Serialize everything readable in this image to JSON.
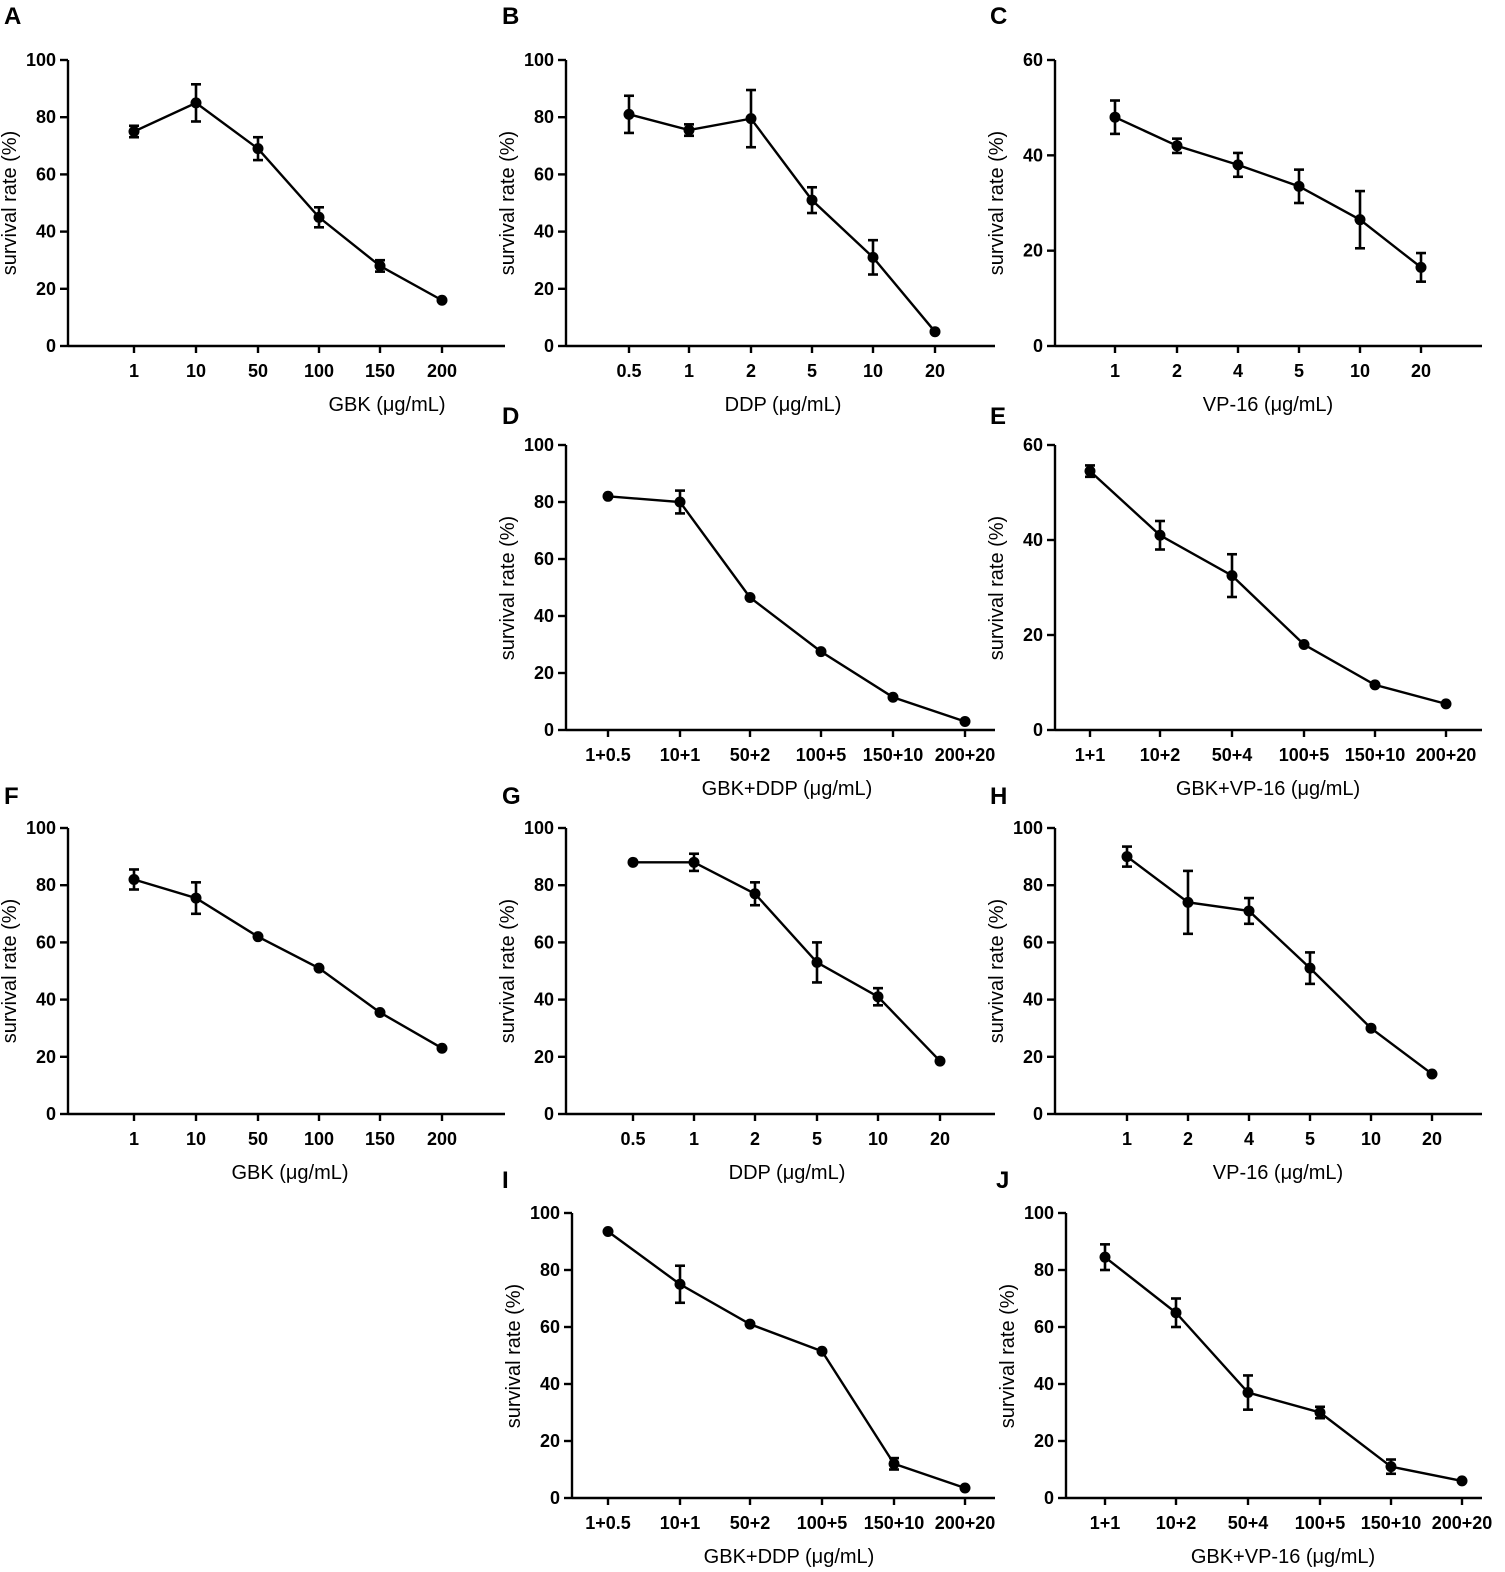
{
  "chart_data": [
    {
      "type": "line",
      "panel": "A",
      "categories": [
        "1",
        "10",
        "50",
        "100",
        "150",
        "200"
      ],
      "values": [
        75,
        85,
        69,
        45,
        28,
        16
      ],
      "errors": [
        2,
        6.5,
        4,
        3.5,
        2,
        0
      ],
      "xlabel": "GBK (μg/mL)",
      "ylabel": "survival rate (%)",
      "ylim": [
        0,
        100
      ],
      "yticks": [
        0,
        20,
        40,
        60,
        80,
        100
      ]
    },
    {
      "type": "line",
      "panel": "B",
      "categories": [
        "0.5",
        "1",
        "2",
        "5",
        "10",
        "20"
      ],
      "values": [
        81,
        75.5,
        79.5,
        51,
        31,
        5
      ],
      "errors": [
        6.5,
        2,
        10,
        4.5,
        6,
        0
      ],
      "xlabel": "DDP (μg/mL)",
      "ylabel": "survival rate (%)",
      "ylim": [
        0,
        100
      ],
      "yticks": [
        0,
        20,
        40,
        60,
        80,
        100
      ]
    },
    {
      "type": "line",
      "panel": "C",
      "categories": [
        "1",
        "2",
        "4",
        "5",
        "10",
        "20"
      ],
      "values": [
        48,
        42,
        38,
        33.5,
        26.5,
        16.5
      ],
      "errors": [
        3.5,
        1.5,
        2.5,
        3.5,
        6,
        3
      ],
      "xlabel": "VP-16 (μg/mL)",
      "ylabel": "survival rate (%)",
      "ylim": [
        0,
        60
      ],
      "yticks": [
        0,
        20,
        40,
        60
      ]
    },
    {
      "type": "line",
      "panel": "D",
      "categories": [
        "1+0.5",
        "10+1",
        "50+2",
        "100+5",
        "150+10",
        "200+20"
      ],
      "values": [
        82,
        80,
        46.5,
        27.5,
        11.5,
        3
      ],
      "errors": [
        0,
        4,
        0,
        0,
        0,
        0
      ],
      "xlabel": "GBK+DDP (μg/mL)",
      "ylabel": "survival rate (%)",
      "ylim": [
        0,
        100
      ],
      "yticks": [
        0,
        20,
        40,
        60,
        80,
        100
      ]
    },
    {
      "type": "line",
      "panel": "E",
      "categories": [
        "1+1",
        "10+2",
        "50+4",
        "100+5",
        "150+10",
        "200+20"
      ],
      "values": [
        54.5,
        41,
        32.5,
        18,
        9.5,
        5.5
      ],
      "errors": [
        1.2,
        3,
        4.5,
        0,
        0,
        0
      ],
      "xlabel": "GBK+VP-16 (μg/mL)",
      "ylabel": "survival rate (%)",
      "ylim": [
        0,
        60
      ],
      "yticks": [
        0,
        20,
        40,
        60
      ]
    },
    {
      "type": "line",
      "panel": "F",
      "categories": [
        "1",
        "10",
        "50",
        "100",
        "150",
        "200"
      ],
      "values": [
        82,
        75.5,
        62,
        51,
        35.5,
        23
      ],
      "errors": [
        3.5,
        5.5,
        0,
        0,
        0,
        0
      ],
      "xlabel": "GBK (μg/mL)",
      "ylabel": "survival rate (%)",
      "ylim": [
        0,
        100
      ],
      "yticks": [
        0,
        20,
        40,
        60,
        80,
        100
      ]
    },
    {
      "type": "line",
      "panel": "G",
      "categories": [
        "0.5",
        "1",
        "2",
        "5",
        "10",
        "20"
      ],
      "values": [
        88,
        88,
        77,
        53,
        41,
        18.5
      ],
      "errors": [
        0,
        3,
        4,
        7,
        3,
        0
      ],
      "xlabel": "DDP (μg/mL)",
      "ylabel": "survival rate (%)",
      "ylim": [
        0,
        100
      ],
      "yticks": [
        0,
        20,
        40,
        60,
        80,
        100
      ]
    },
    {
      "type": "line",
      "panel": "H",
      "categories": [
        "1",
        "2",
        "4",
        "5",
        "10",
        "20"
      ],
      "values": [
        90,
        74,
        71,
        51,
        30,
        14
      ],
      "errors": [
        3.5,
        11,
        4.5,
        5.5,
        0,
        0
      ],
      "xlabel": "VP-16 (μg/mL)",
      "ylabel": "survival rate (%)",
      "ylim": [
        0,
        100
      ],
      "yticks": [
        0,
        20,
        40,
        60,
        80,
        100
      ]
    },
    {
      "type": "line",
      "panel": "I",
      "categories": [
        "1+0.5",
        "10+1",
        "50+2",
        "100+5",
        "150+10",
        "200+20"
      ],
      "values": [
        93.5,
        75,
        61,
        51.5,
        12,
        3.5
      ],
      "errors": [
        0,
        6.5,
        0,
        0,
        2,
        0
      ],
      "xlabel": "GBK+DDP (μg/mL)",
      "ylabel": "survival rate (%)",
      "ylim": [
        0,
        100
      ],
      "yticks": [
        0,
        20,
        40,
        60,
        80,
        100
      ]
    },
    {
      "type": "line",
      "panel": "J",
      "categories": [
        "1+1",
        "10+2",
        "50+4",
        "100+5",
        "150+10",
        "200+20"
      ],
      "values": [
        84.5,
        65,
        37,
        30,
        11,
        6
      ],
      "errors": [
        4.5,
        5,
        6,
        2,
        2.5,
        0
      ],
      "xlabel": "GBK+VP-16 (μg/mL)",
      "ylabel": "survival rate (%)",
      "ylim": [
        0,
        100
      ],
      "yticks": [
        0,
        20,
        40,
        60,
        80,
        100
      ]
    }
  ]
}
